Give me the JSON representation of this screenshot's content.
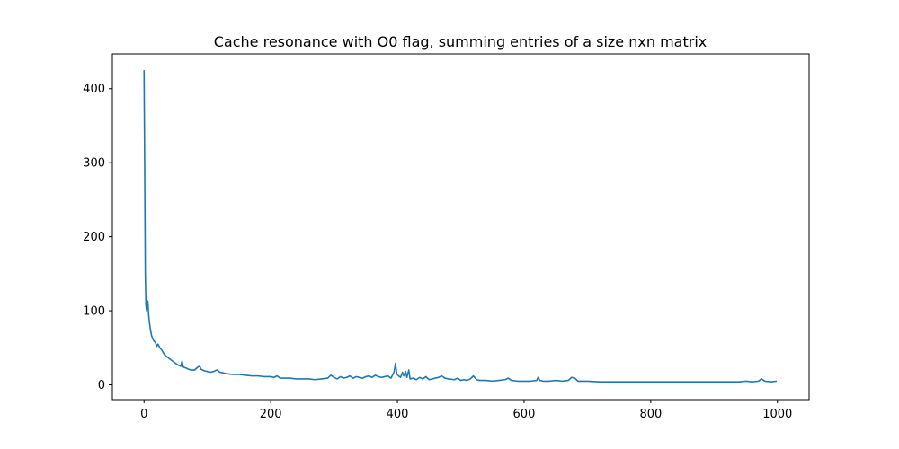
{
  "chart_data": {
    "type": "line",
    "title": "Cache resonance with O0 flag, summing entries of a size nxn matrix",
    "xlabel": "",
    "ylabel": "",
    "xlim": [
      -50,
      1050
    ],
    "ylim": [
      -20,
      447
    ],
    "xticks": [
      0,
      200,
      400,
      600,
      800,
      1000
    ],
    "yticks": [
      0,
      100,
      200,
      300,
      400
    ],
    "grid": false,
    "line_color": "#1f77b4",
    "series": [
      {
        "points": [
          [
            0,
            425
          ],
          [
            1,
            300
          ],
          [
            2,
            150
          ],
          [
            3,
            108
          ],
          [
            4,
            100
          ],
          [
            5,
            106
          ],
          [
            6,
            113
          ],
          [
            7,
            98
          ],
          [
            8,
            88
          ],
          [
            10,
            75
          ],
          [
            12,
            66
          ],
          [
            15,
            60
          ],
          [
            18,
            57
          ],
          [
            20,
            52
          ],
          [
            22,
            55
          ],
          [
            25,
            50
          ],
          [
            28,
            47
          ],
          [
            30,
            44
          ],
          [
            33,
            40
          ],
          [
            36,
            38
          ],
          [
            39,
            36
          ],
          [
            42,
            34
          ],
          [
            45,
            32
          ],
          [
            48,
            30
          ],
          [
            50,
            29
          ],
          [
            53,
            27
          ],
          [
            56,
            26
          ],
          [
            58,
            25
          ],
          [
            60,
            32
          ],
          [
            62,
            24
          ],
          [
            65,
            23
          ],
          [
            68,
            22
          ],
          [
            70,
            21
          ],
          [
            75,
            20
          ],
          [
            80,
            20
          ],
          [
            85,
            24
          ],
          [
            88,
            25
          ],
          [
            90,
            21
          ],
          [
            95,
            19
          ],
          [
            100,
            18
          ],
          [
            105,
            17
          ],
          [
            110,
            18
          ],
          [
            115,
            20
          ],
          [
            120,
            17
          ],
          [
            125,
            16
          ],
          [
            130,
            15
          ],
          [
            140,
            14
          ],
          [
            150,
            14
          ],
          [
            160,
            13
          ],
          [
            170,
            12
          ],
          [
            180,
            12
          ],
          [
            190,
            11
          ],
          [
            200,
            11
          ],
          [
            205,
            10
          ],
          [
            210,
            12
          ],
          [
            215,
            9
          ],
          [
            220,
            9
          ],
          [
            230,
            9
          ],
          [
            240,
            8
          ],
          [
            250,
            8
          ],
          [
            260,
            8
          ],
          [
            270,
            7
          ],
          [
            280,
            8
          ],
          [
            290,
            9
          ],
          [
            295,
            13
          ],
          [
            300,
            10
          ],
          [
            305,
            8
          ],
          [
            310,
            11
          ],
          [
            315,
            9
          ],
          [
            320,
            10
          ],
          [
            325,
            12
          ],
          [
            330,
            9
          ],
          [
            335,
            11
          ],
          [
            340,
            10
          ],
          [
            345,
            9
          ],
          [
            350,
            11
          ],
          [
            355,
            12
          ],
          [
            360,
            10
          ],
          [
            365,
            13
          ],
          [
            370,
            11
          ],
          [
            375,
            10
          ],
          [
            380,
            11
          ],
          [
            385,
            12
          ],
          [
            390,
            9
          ],
          [
            395,
            18
          ],
          [
            397,
            29
          ],
          [
            399,
            15
          ],
          [
            402,
            12
          ],
          [
            405,
            10
          ],
          [
            408,
            17
          ],
          [
            410,
            12
          ],
          [
            413,
            18
          ],
          [
            415,
            10
          ],
          [
            418,
            20
          ],
          [
            420,
            8
          ],
          [
            425,
            9
          ],
          [
            430,
            7
          ],
          [
            435,
            10
          ],
          [
            440,
            8
          ],
          [
            445,
            11
          ],
          [
            450,
            7
          ],
          [
            455,
            8
          ],
          [
            460,
            9
          ],
          [
            465,
            10
          ],
          [
            470,
            12
          ],
          [
            475,
            9
          ],
          [
            480,
            8
          ],
          [
            490,
            7
          ],
          [
            495,
            9
          ],
          [
            500,
            6
          ],
          [
            505,
            7
          ],
          [
            510,
            6
          ],
          [
            515,
            8
          ],
          [
            520,
            12
          ],
          [
            525,
            7
          ],
          [
            530,
            6
          ],
          [
            540,
            6
          ],
          [
            550,
            5
          ],
          [
            560,
            6
          ],
          [
            570,
            7
          ],
          [
            575,
            9
          ],
          [
            580,
            6
          ],
          [
            590,
            5
          ],
          [
            600,
            5
          ],
          [
            610,
            5
          ],
          [
            620,
            6
          ],
          [
            622,
            10
          ],
          [
            625,
            6
          ],
          [
            630,
            5
          ],
          [
            640,
            5
          ],
          [
            650,
            6
          ],
          [
            660,
            5
          ],
          [
            670,
            6
          ],
          [
            675,
            10
          ],
          [
            680,
            9
          ],
          [
            685,
            5
          ],
          [
            690,
            5
          ],
          [
            700,
            5
          ],
          [
            720,
            4
          ],
          [
            740,
            4
          ],
          [
            760,
            4
          ],
          [
            780,
            4
          ],
          [
            800,
            4
          ],
          [
            820,
            4
          ],
          [
            840,
            4
          ],
          [
            860,
            4
          ],
          [
            880,
            4
          ],
          [
            900,
            4
          ],
          [
            920,
            4
          ],
          [
            940,
            4
          ],
          [
            950,
            5
          ],
          [
            960,
            4
          ],
          [
            970,
            5
          ],
          [
            975,
            8
          ],
          [
            980,
            5
          ],
          [
            990,
            4
          ],
          [
            999,
            5
          ]
        ]
      }
    ]
  }
}
